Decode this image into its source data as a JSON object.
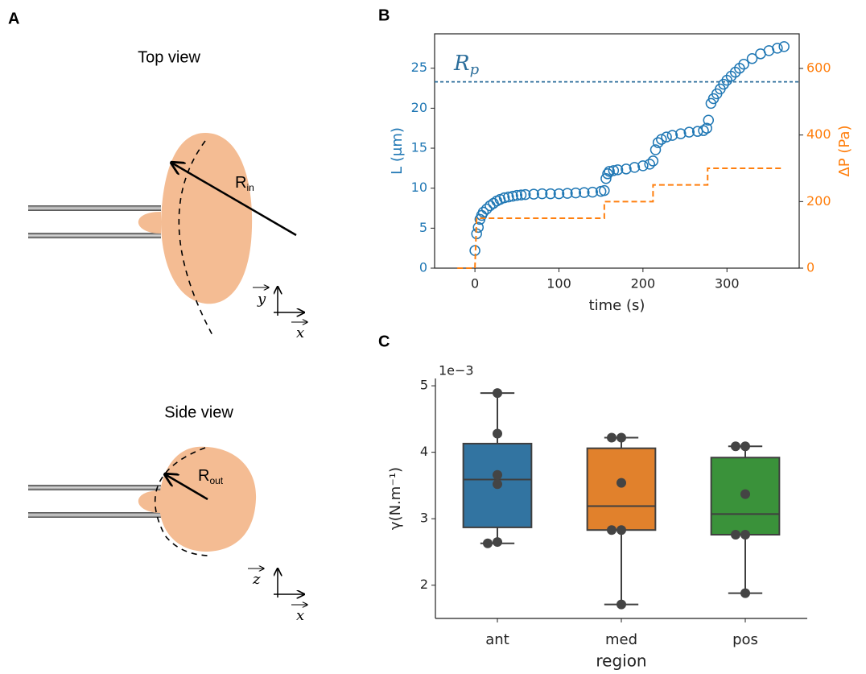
{
  "diagram": {
    "label": "A",
    "top_view": {
      "title": "Top view",
      "radius": "R",
      "radius_sub": "in",
      "axis_up": "y",
      "axis_right": "x"
    },
    "side_view": {
      "title": "Side view",
      "radius": "R",
      "radius_sub": "out",
      "axis_up": "z",
      "axis_right": "x"
    }
  },
  "chart_data": [
    {
      "type": "scatter",
      "panel": "B",
      "xlabel": "time (s)",
      "ylabel": "L (μm)",
      "y2label": "ΔP (Pa)",
      "xlim": [
        -48,
        386
      ],
      "xticks": [
        0,
        100,
        200,
        300
      ],
      "ylim": [
        0,
        29.3
      ],
      "yticks": [
        0,
        5,
        10,
        15,
        20,
        25
      ],
      "y2lim": [
        0,
        704
      ],
      "y2ticks": [
        0,
        200,
        400,
        600
      ],
      "ycolor": "#1f77b4",
      "y2color": "#ff7f0e",
      "hline": {
        "value": 23.3,
        "label": "R",
        "label_sub": "p",
        "color": "#2c6e9b"
      },
      "series": [
        {
          "name": "L",
          "color": "#1f77b4",
          "marker": "circle",
          "x": [
            0,
            2,
            4,
            6,
            8,
            10,
            14,
            18,
            22,
            26,
            30,
            35,
            40,
            45,
            50,
            55,
            60,
            70,
            80,
            90,
            100,
            110,
            120,
            130,
            140,
            150,
            154,
            156,
            158,
            160,
            165,
            170,
            180,
            190,
            200,
            208,
            212,
            215,
            218,
            222,
            228,
            235,
            245,
            255,
            265,
            272,
            276,
            278,
            281,
            284,
            288,
            292,
            296,
            300,
            305,
            310,
            315,
            320,
            330,
            340,
            350,
            360,
            368
          ],
          "values": [
            2.2,
            4.3,
            5.1,
            6.1,
            6.6,
            7.0,
            7.4,
            7.8,
            8.1,
            8.4,
            8.6,
            8.8,
            8.9,
            9.0,
            9.1,
            9.15,
            9.2,
            9.25,
            9.3,
            9.3,
            9.3,
            9.35,
            9.4,
            9.45,
            9.5,
            9.6,
            9.7,
            11.2,
            11.8,
            12.1,
            12.2,
            12.3,
            12.4,
            12.6,
            12.8,
            13.0,
            13.4,
            14.8,
            15.7,
            16.1,
            16.4,
            16.6,
            16.8,
            17.0,
            17.1,
            17.2,
            17.5,
            18.5,
            20.6,
            21.2,
            21.8,
            22.4,
            23.0,
            23.5,
            24.0,
            24.5,
            25.0,
            25.5,
            26.2,
            26.8,
            27.2,
            27.5,
            27.7
          ]
        },
        {
          "name": "ΔP",
          "color": "#ff7f0e",
          "linestyle": "dashed",
          "axis": "y2",
          "x": [
            -21,
            0,
            2,
            154,
            154,
            212,
            212,
            277,
            277,
            367
          ],
          "values": [
            0,
            0,
            150,
            150,
            200,
            200,
            250,
            250,
            300,
            300
          ]
        }
      ]
    },
    {
      "type": "box",
      "panel": "C",
      "xlabel": "region",
      "ylabel": "γ(N.m⁻¹)",
      "offset_text": "1e−3",
      "ylim": [
        1.5,
        5.11
      ],
      "yticks": [
        2,
        3,
        4,
        5
      ],
      "categories": [
        "ant",
        "med",
        "pos"
      ],
      "colors": [
        "#3274a1",
        "#e1812c",
        "#3a923a"
      ],
      "boxes": [
        {
          "whislo": 2.63,
          "q1": 2.87,
          "med": 3.59,
          "q3": 4.13,
          "whishi": 4.89,
          "points": [
            4.89,
            4.28,
            3.66,
            3.52,
            2.65,
            2.63
          ]
        },
        {
          "whislo": 1.71,
          "q1": 2.83,
          "med": 3.19,
          "q3": 4.06,
          "whishi": 4.22,
          "points": [
            4.22,
            4.22,
            3.54,
            2.83,
            2.83,
            1.71
          ]
        },
        {
          "whislo": 1.88,
          "q1": 2.76,
          "med": 3.07,
          "q3": 3.92,
          "whishi": 4.09,
          "points": [
            4.09,
            4.09,
            3.37,
            2.76,
            2.76,
            1.88
          ]
        }
      ]
    }
  ]
}
